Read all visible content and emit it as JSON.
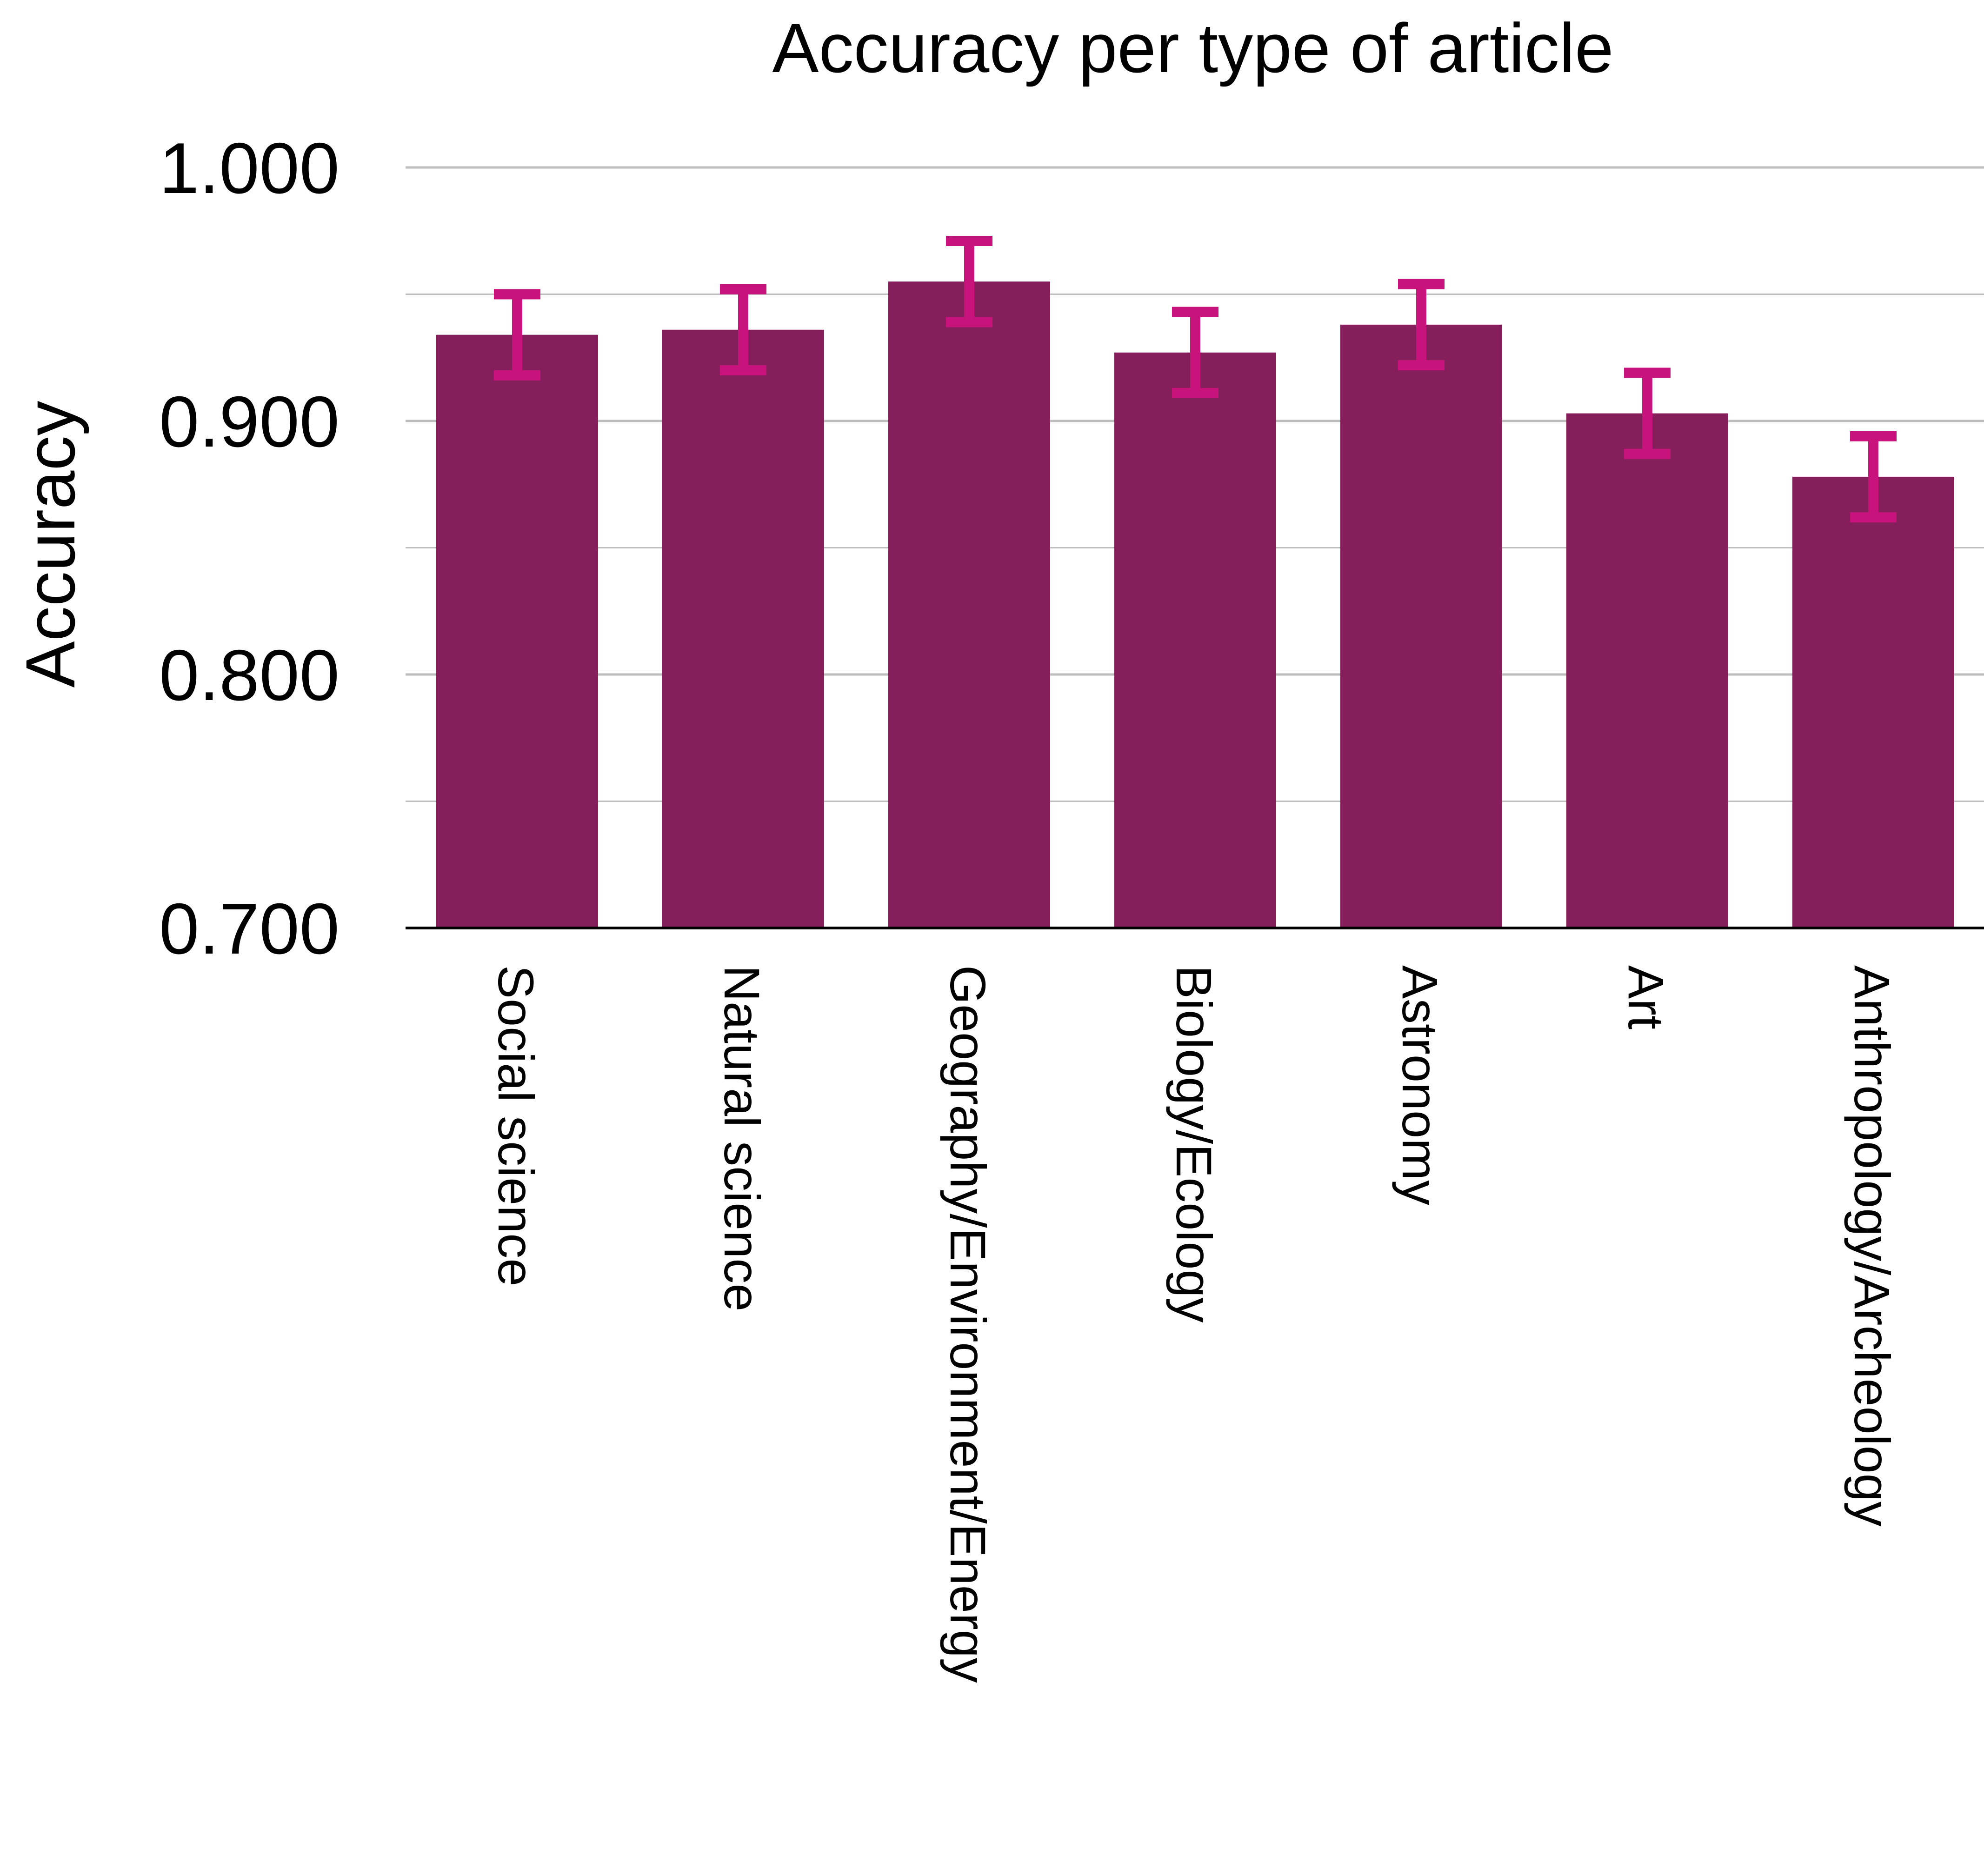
{
  "chart_data": {
    "type": "bar",
    "title": "Accuracy per type of article",
    "xlabel": "",
    "ylabel": "Accuracy",
    "ylim": [
      0.7,
      1.0
    ],
    "yticks": [
      0.7,
      0.8,
      0.9,
      1.0
    ],
    "ytick_labels": [
      "0.700",
      "0.800",
      "0.900",
      "1.000"
    ],
    "minor_gridlines": [
      0.75,
      0.85,
      0.95
    ],
    "grid": true,
    "categories": [
      "Social science",
      "Natural science",
      "Geography/Environment/Energy",
      "Biology/Ecology",
      "Astronomy",
      "Art",
      "Anthropology/Archeology"
    ],
    "values": [
      0.934,
      0.936,
      0.955,
      0.927,
      0.938,
      0.903,
      0.878
    ],
    "error_low": [
      0.918,
      0.92,
      0.939,
      0.911,
      0.922,
      0.887,
      0.862
    ],
    "error_high": [
      0.95,
      0.952,
      0.971,
      0.943,
      0.954,
      0.919,
      0.894
    ],
    "colors": {
      "bar": "#841f5b",
      "error_bar": "#c8127c",
      "grid": "#bdbdbd",
      "axis": "#000000"
    },
    "x_label_rotation": "vertical, reading top-to-bottom"
  }
}
